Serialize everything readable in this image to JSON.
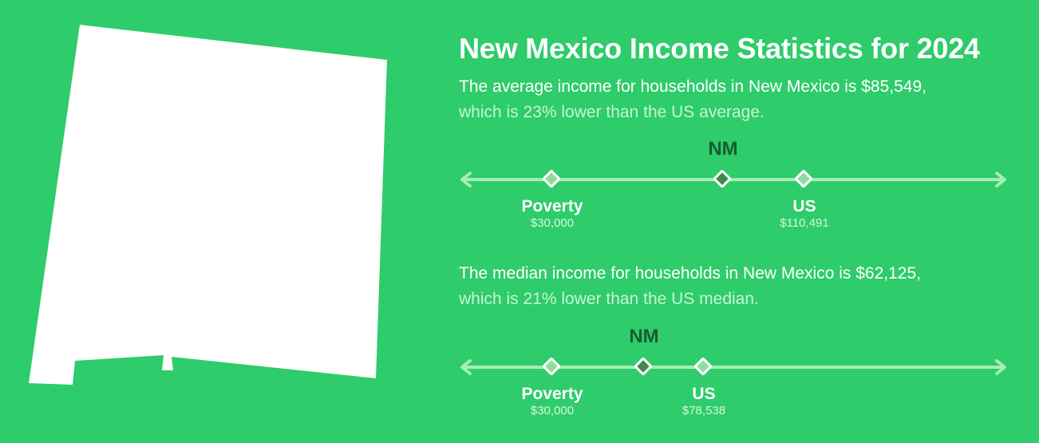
{
  "title": "New Mexico Income Statistics for 2024",
  "average": {
    "line1": "The average income for households in New Mexico is $85,549,",
    "line2": "which is 23% lower than the US average.",
    "scale": {
      "state_label": "NM",
      "state_value": 85549,
      "poverty_label": "Poverty",
      "poverty_value_text": "$30,000",
      "poverty_value": 30000,
      "us_label": "US",
      "us_value_text": "$110,491",
      "us_value": 110491
    }
  },
  "median": {
    "line1": "The median income for households in New Mexico is $62,125,",
    "line2": "which is 21% lower than the US median.",
    "scale": {
      "state_label": "NM",
      "state_value": 62125,
      "poverty_label": "Poverty",
      "poverty_value_text": "$30,000",
      "poverty_value": 30000,
      "us_label": "US",
      "us_value_text": "$78,538",
      "us_value": 78538
    }
  },
  "colors": {
    "background": "#2ecc6a",
    "line": "#a8edb8",
    "state_marker": "#3f8a4c",
    "reference_marker": "#8fdc9f"
  }
}
